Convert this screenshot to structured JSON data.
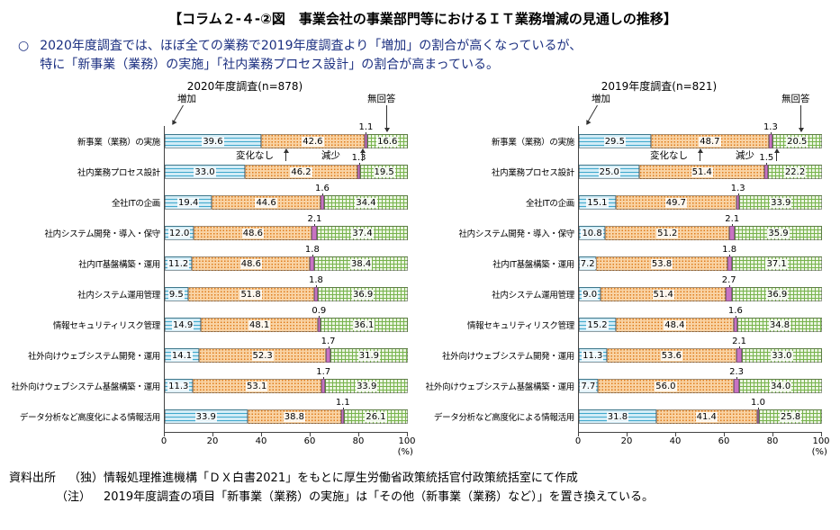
{
  "page": {
    "title": "【コラム２-４-②図　事業会社の事業部門等におけるＩＴ業務増減の見通しの推移】",
    "bullet": "○",
    "summary_line1": "2020年度調査では、ほぼ全ての業務で2019年度調査より「増加」の割合が高くなっているが、",
    "summary_line2": "特に「新事業（業務）の実施」「社内業務プロセス設計」の割合が高まっている。",
    "source_label": "資料出所",
    "source_text": "（独）情報処理推進機構「ＤＸ白書2021」をもとに厚生労働省政策統括官付政策統括室にて作成",
    "note_label": "（注）",
    "note_text": "2019年度調査の項目「新事業（業務）の実施」は「その他（新事業（業務）など）」を置き換えている。"
  },
  "legend": {
    "increase": "増加",
    "nochange": "変化なし",
    "decrease": "減少",
    "noanswer": "無回答"
  },
  "colors": {
    "increase_bg": "#d2ecf6",
    "increase_line": "#3fa8cc",
    "nochange_bg": "#f9d3a4",
    "nochange_dot": "#df7d1e",
    "decrease": "#c873c3",
    "noanswer_bg": "#eaf4df",
    "noanswer_line": "#78b44e",
    "text_body": "#1b2f80",
    "axis": "#444444"
  },
  "chart_data": [
    {
      "type": "bar",
      "stacked": true,
      "orientation": "horizontal",
      "title": "2020年度調査(n=878)",
      "categories": [
        "新事業（業務）の実施",
        "社内業務プロセス設計",
        "全社ITの企画",
        "社内システム開発・導入・保守",
        "社内IT基盤構築・運用",
        "社内システム運用管理",
        "情報セキュリティリスク管理",
        "社外向けウェブシステム開発・運用",
        "社外向けウェブシステム基盤構築・運用",
        "データ分析など高度化による情報活用"
      ],
      "series": [
        {
          "name": "増加",
          "values": [
            39.6,
            33.0,
            19.4,
            12.0,
            11.2,
            9.5,
            14.9,
            14.1,
            11.3,
            33.9
          ]
        },
        {
          "name": "変化なし",
          "values": [
            42.6,
            46.2,
            44.6,
            48.6,
            48.6,
            51.8,
            48.1,
            52.3,
            53.1,
            38.8
          ]
        },
        {
          "name": "減少",
          "values": [
            1.1,
            1.3,
            1.6,
            2.1,
            1.8,
            1.8,
            0.9,
            1.7,
            1.7,
            1.1
          ]
        },
        {
          "name": "無回答",
          "values": [
            16.6,
            19.5,
            34.4,
            37.4,
            38.4,
            36.9,
            36.1,
            31.9,
            33.9,
            26.1
          ]
        }
      ],
      "xlim": [
        0,
        100
      ],
      "x_ticks": [
        0,
        20,
        40,
        60,
        80,
        100
      ],
      "x_unit": "(%)"
    },
    {
      "type": "bar",
      "stacked": true,
      "orientation": "horizontal",
      "title": "2019年度調査(n=821)",
      "categories": [
        "新事業（業務）の実施",
        "社内業務プロセス設計",
        "全社ITの企画",
        "社内システム開発・導入・保守",
        "社内IT基盤構築・運用",
        "社内システム運用管理",
        "情報セキュリティリスク管理",
        "社外向けウェブシステム開発・運用",
        "社外向けウェブシステム基盤構築・運用",
        "データ分析など高度化による情報活用"
      ],
      "series": [
        {
          "name": "増加",
          "values": [
            29.5,
            25.0,
            15.1,
            10.8,
            7.2,
            9.0,
            15.2,
            11.3,
            7.7,
            31.8
          ]
        },
        {
          "name": "変化なし",
          "values": [
            48.7,
            51.4,
            49.7,
            51.2,
            53.8,
            51.4,
            48.4,
            53.6,
            56.0,
            41.4
          ]
        },
        {
          "name": "減少",
          "values": [
            1.3,
            1.5,
            1.3,
            2.1,
            1.8,
            2.7,
            1.6,
            2.1,
            2.3,
            1.0
          ]
        },
        {
          "name": "無回答",
          "values": [
            20.5,
            22.2,
            33.9,
            35.9,
            37.1,
            36.9,
            34.8,
            33.0,
            34.0,
            25.8
          ]
        }
      ],
      "xlim": [
        0,
        100
      ],
      "x_ticks": [
        0,
        20,
        40,
        60,
        80,
        100
      ],
      "x_unit": "(%)"
    }
  ]
}
